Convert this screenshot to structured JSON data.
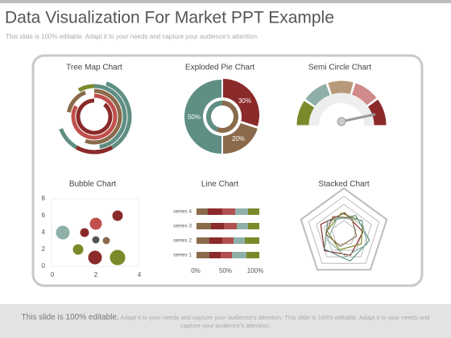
{
  "header": {
    "title": "Data Visualization For Market PPT Example",
    "subtitle": "This slide is 100% editable. Adapt it to your needs and capture your audience's attention."
  },
  "panels": [
    {
      "title": "Tree Map Chart"
    },
    {
      "title": "Exploded Pie Chart",
      "labels": [
        "30%",
        "50%",
        "20%"
      ]
    },
    {
      "title": "Semi Circle Chart"
    },
    {
      "title": "Bubble Chart",
      "y_ticks": [
        "0",
        "2",
        "4",
        "6",
        "8"
      ],
      "x_ticks": [
        "0",
        "2",
        "4"
      ]
    },
    {
      "title": "Line Chart",
      "series": [
        "series 4",
        "series 3",
        "series 2",
        "series 1"
      ],
      "x_ticks": [
        "0%",
        "50%",
        "100%"
      ]
    },
    {
      "title": "Stacked Chart"
    }
  ],
  "footer": {
    "lead": "This slide is 100% editable.",
    "text": "Adapt it to your needs and capture your audience's attention. This slide is 100% editable. Adapt it to your needs and capture your audience's attention."
  }
}
